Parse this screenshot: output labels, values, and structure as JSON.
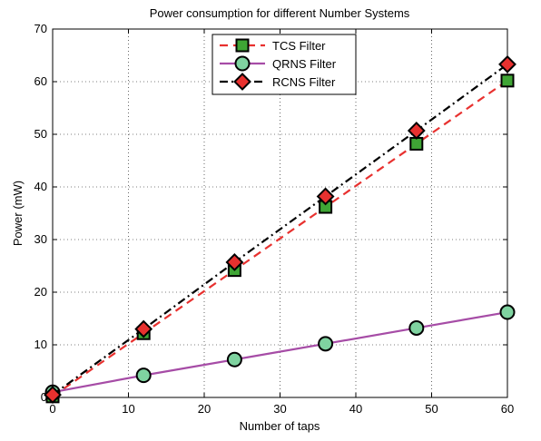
{
  "chart_data": {
    "type": "line",
    "title": "Power consumption for different Number Systems",
    "xlabel": "Number of taps",
    "ylabel": "Power (mW)",
    "xlim": [
      0,
      60
    ],
    "ylim": [
      0,
      70
    ],
    "xticks": [
      0,
      10,
      20,
      30,
      40,
      50,
      60
    ],
    "yticks": [
      0,
      10,
      20,
      30,
      40,
      50,
      60,
      70
    ],
    "grid": true,
    "legend_position": "top-center",
    "series": [
      {
        "name": "TCS Filter",
        "x": [
          0,
          12,
          24,
          36,
          48,
          60
        ],
        "y": [
          0.2,
          12.2,
          24.2,
          36.2,
          48.2,
          60.2
        ],
        "line_color": "#e8312f",
        "line_style": "dashed",
        "marker": "square",
        "marker_color": "#3fa535"
      },
      {
        "name": "QRNS Filter",
        "x": [
          0,
          12,
          24,
          36,
          48,
          60
        ],
        "y": [
          1.0,
          4.2,
          7.2,
          10.2,
          13.2,
          16.2
        ],
        "line_color": "#a64ca6",
        "line_style": "solid",
        "marker": "circle",
        "marker_color": "#7fd3a0"
      },
      {
        "name": "RCNS Filter",
        "x": [
          0,
          12,
          24,
          36,
          48,
          60
        ],
        "y": [
          0.5,
          13.0,
          25.7,
          38.2,
          50.7,
          63.3
        ],
        "line_color": "#000000",
        "line_style": "dashdot",
        "marker": "diamond",
        "marker_color": "#e8312f"
      }
    ]
  }
}
